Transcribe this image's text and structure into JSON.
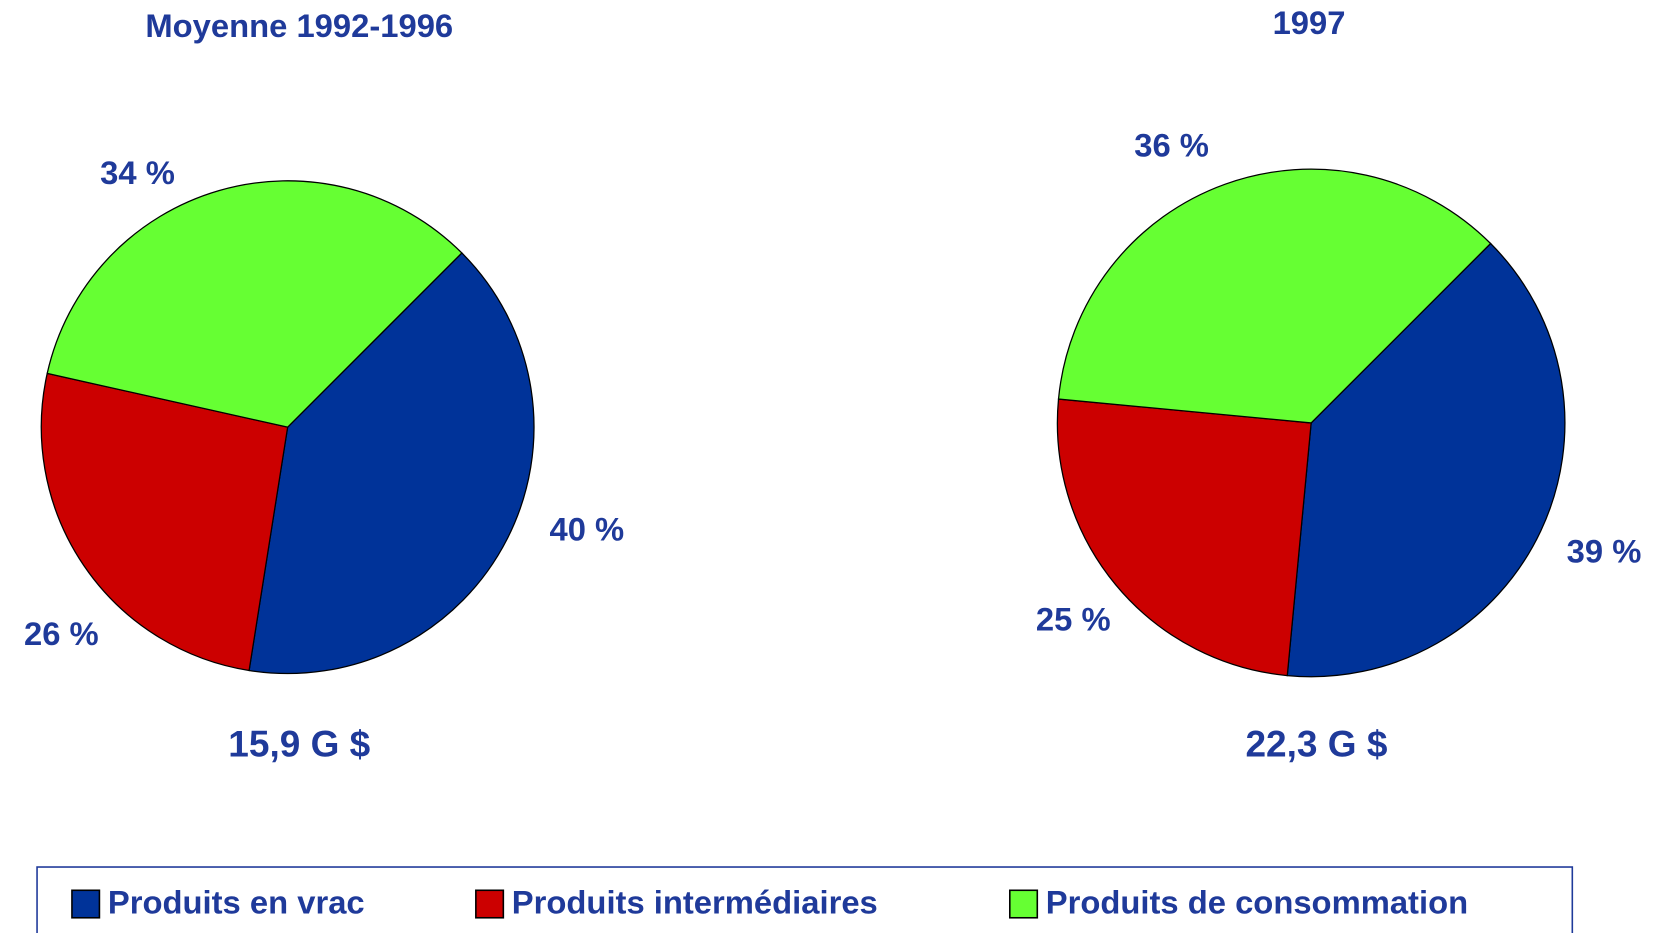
{
  "chart_data": [
    {
      "type": "pie",
      "title": "Moyenne 1992-1996",
      "categories": [
        "Produits en vrac",
        "Produits intermédiaires",
        "Produits de consommation"
      ],
      "values": [
        40,
        26,
        34
      ],
      "value_labels": [
        "40 %",
        "26 %",
        "34 %"
      ],
      "colors": [
        "#003399",
        "#cc0000",
        "#66ff33"
      ],
      "annotation": "15,9 G $"
    },
    {
      "type": "pie",
      "title": "1997",
      "categories": [
        "Produits en vrac",
        "Produits intermédiaires",
        "Produits de consommation"
      ],
      "values": [
        39,
        25,
        36
      ],
      "value_labels": [
        "39 %",
        "25 %",
        "36 %"
      ],
      "colors": [
        "#003399",
        "#cc0000",
        "#66ff33"
      ],
      "annotation": "22,3 G $"
    }
  ]
}
